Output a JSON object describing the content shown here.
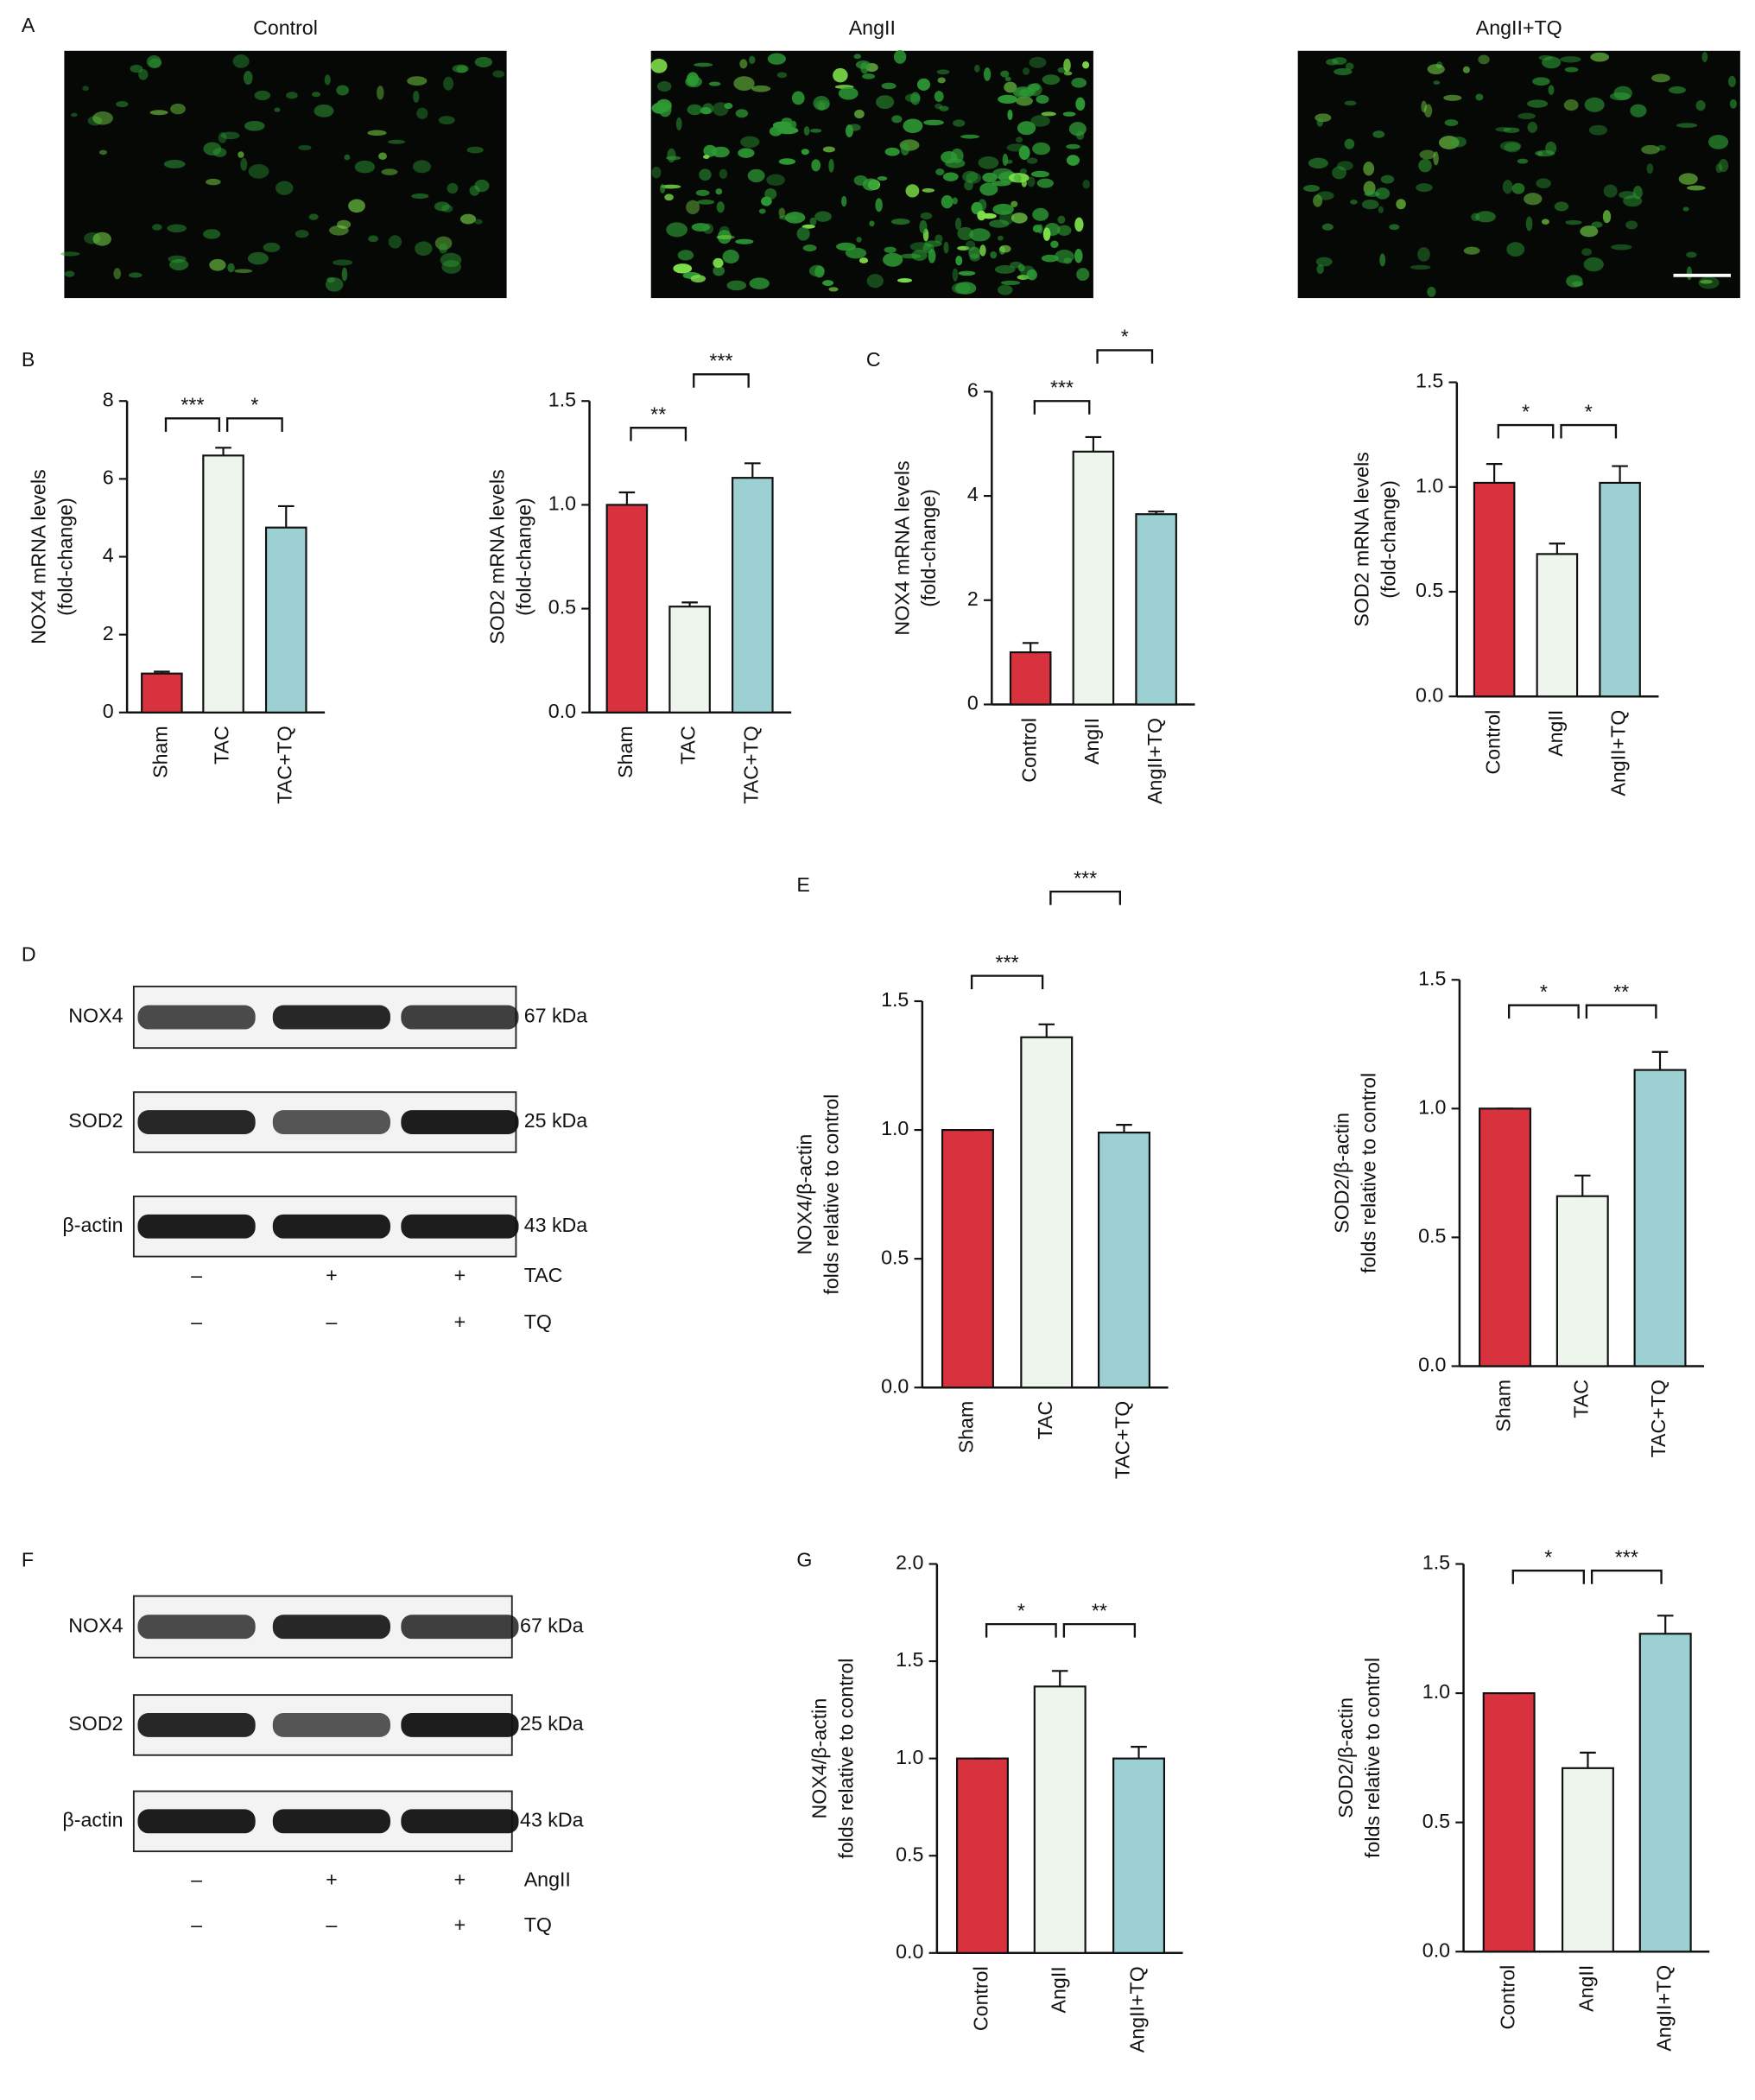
{
  "panel_labels": [
    "A",
    "B",
    "C",
    "D",
    "E",
    "F",
    "G"
  ],
  "images": {
    "titles": [
      "Control",
      "AngII",
      "AngII+TQ"
    ]
  },
  "blots": [
    {
      "rows": [
        {
          "label": "NOX4",
          "size": "67 kDa"
        },
        {
          "label": "SOD2",
          "size": "25 kDa"
        },
        {
          "label": "β-actin",
          "size": "43 kDa"
        }
      ],
      "conditions": [
        {
          "label": "TAC",
          "signs": [
            "–",
            "+",
            "+"
          ]
        },
        {
          "label": "TQ",
          "signs": [
            "–",
            "–",
            "+"
          ]
        }
      ]
    },
    {
      "rows": [
        {
          "label": "NOX4",
          "size": "67 kDa"
        },
        {
          "label": "SOD2",
          "size": "25 kDa"
        },
        {
          "label": "β-actin",
          "size": "43 kDa"
        }
      ],
      "conditions": [
        {
          "label": "AngII",
          "signs": [
            "–",
            "+",
            "+"
          ]
        },
        {
          "label": "TQ",
          "signs": [
            "–",
            "–",
            "+"
          ]
        }
      ]
    }
  ],
  "chart_data": [
    {
      "type": "bar",
      "ylabel": [
        "NOX4 mRNA levels",
        "(fold-change)"
      ],
      "categories": [
        "Sham",
        "TAC",
        "TAC+TQ"
      ],
      "values": [
        1.0,
        6.6,
        4.75
      ],
      "errors": [
        0.05,
        0.2,
        0.55
      ],
      "colors": [
        "#d9323f",
        "#eef5ec",
        "#9dd0d3"
      ],
      "ylim": [
        0,
        8
      ],
      "yticks": [
        0,
        2,
        4,
        6,
        8
      ],
      "annotations": [
        {
          "text": "***",
          "from": 0,
          "to": 1
        },
        {
          "text": "*",
          "from": 1,
          "to": 2
        }
      ]
    },
    {
      "type": "bar",
      "ylabel": [
        "SOD2 mRNA levels",
        "(fold-change)"
      ],
      "categories": [
        "Sham",
        "TAC",
        "TAC+TQ"
      ],
      "values": [
        1.0,
        0.51,
        1.13
      ],
      "errors": [
        0.06,
        0.02,
        0.07
      ],
      "colors": [
        "#d9323f",
        "#eef5ec",
        "#9dd0d3"
      ],
      "ylim": [
        0,
        1.5
      ],
      "yticks": [
        {
          "value": 0,
          "label": "0.0"
        },
        0.5,
        {
          "value": 1,
          "label": "1.0"
        },
        1.5
      ],
      "annotations": [
        {
          "text": "**",
          "from": 0,
          "to": 1
        },
        {
          "text": "***",
          "from": 1,
          "to": 2
        }
      ]
    },
    {
      "type": "bar",
      "ylabel": [
        "NOX4 mRNA levels",
        "(fold-change)"
      ],
      "categories": [
        "Control",
        "AngII",
        "AngII+TQ"
      ],
      "values": [
        1.0,
        4.85,
        3.65
      ],
      "errors": [
        0.18,
        0.28,
        0.05
      ],
      "colors": [
        "#d9323f",
        "#eef5ec",
        "#9dd0d3"
      ],
      "ylim": [
        0,
        6
      ],
      "yticks": [
        0,
        2,
        4,
        6
      ],
      "annotations": [
        {
          "text": "***",
          "from": 0,
          "to": 1
        },
        {
          "text": "*",
          "from": 1,
          "to": 2
        }
      ]
    },
    {
      "type": "bar",
      "ylabel": [
        "SOD2 mRNA levels",
        "(fold-change)"
      ],
      "categories": [
        "Control",
        "AngII",
        "AngII+TQ"
      ],
      "values": [
        1.02,
        0.68,
        1.02
      ],
      "errors": [
        0.09,
        0.05,
        0.08
      ],
      "colors": [
        "#d9323f",
        "#eef5ec",
        "#9dd0d3"
      ],
      "ylim": [
        0,
        1.5
      ],
      "yticks": [
        {
          "value": 0,
          "label": "0.0"
        },
        0.5,
        {
          "value": 1,
          "label": "1.0"
        },
        1.5
      ],
      "annotations": [
        {
          "text": "*",
          "from": 0,
          "to": 1
        },
        {
          "text": "*",
          "from": 1,
          "to": 2
        }
      ]
    },
    {
      "type": "bar",
      "ylabel": [
        "NOX4/β-actin",
        "folds relative to control"
      ],
      "categories": [
        "Sham",
        "TAC",
        "TAC+TQ"
      ],
      "values": [
        1.0,
        1.36,
        0.99
      ],
      "errors": [
        0,
        0.05,
        0.03
      ],
      "colors": [
        "#d9323f",
        "#eef5ec",
        "#9dd0d3"
      ],
      "ylim": [
        0,
        1.5
      ],
      "yticks": [
        {
          "value": 0,
          "label": "0.0"
        },
        0.5,
        {
          "value": 1,
          "label": "1.0"
        },
        1.5
      ],
      "annotations": [
        {
          "text": "***",
          "from": 0,
          "to": 1
        },
        {
          "text": "***",
          "from": 1,
          "to": 2
        }
      ]
    },
    {
      "type": "bar",
      "ylabel": [
        "SOD2/β-actin",
        "folds relative to control"
      ],
      "categories": [
        "Sham",
        "TAC",
        "TAC+TQ"
      ],
      "values": [
        1.0,
        0.66,
        1.15
      ],
      "errors": [
        0,
        0.08,
        0.07
      ],
      "colors": [
        "#d9323f",
        "#eef5ec",
        "#9dd0d3"
      ],
      "ylim": [
        0,
        1.5
      ],
      "yticks": [
        {
          "value": 0,
          "label": "0.0"
        },
        0.5,
        {
          "value": 1,
          "label": "1.0"
        },
        1.5
      ],
      "annotations": [
        {
          "text": "*",
          "from": 0,
          "to": 1
        },
        {
          "text": "**",
          "from": 1,
          "to": 2
        }
      ]
    },
    {
      "type": "bar",
      "ylabel": [
        "NOX4/β-actin",
        "folds relative to control"
      ],
      "categories": [
        "Control",
        "AngII",
        "AngII+TQ"
      ],
      "values": [
        1.0,
        1.37,
        1.0
      ],
      "errors": [
        0,
        0.08,
        0.06
      ],
      "colors": [
        "#d9323f",
        "#eef5ec",
        "#9dd0d3"
      ],
      "ylim": [
        0,
        2
      ],
      "yticks": [
        {
          "value": 0,
          "label": "0.0"
        },
        0.5,
        {
          "value": 1,
          "label": "1.0"
        },
        1.5,
        {
          "value": 2,
          "label": "2.0"
        }
      ],
      "annotations": [
        {
          "text": "*",
          "from": 0,
          "to": 1
        },
        {
          "text": "**",
          "from": 1,
          "to": 2
        }
      ]
    },
    {
      "type": "bar",
      "ylabel": [
        "SOD2/β-actin",
        "folds relative to control"
      ],
      "categories": [
        "Control",
        "AngII",
        "AngII+TQ"
      ],
      "values": [
        1.0,
        0.71,
        1.23
      ],
      "errors": [
        0,
        0.06,
        0.07
      ],
      "colors": [
        "#d9323f",
        "#eef5ec",
        "#9dd0d3"
      ],
      "ylim": [
        0,
        1.5
      ],
      "yticks": [
        {
          "value": 0,
          "label": "0.0"
        },
        0.5,
        {
          "value": 1,
          "label": "1.0"
        },
        1.5
      ],
      "annotations": [
        {
          "text": "*",
          "from": 0,
          "to": 1
        },
        {
          "text": "***",
          "from": 1,
          "to": 2
        }
      ]
    }
  ]
}
